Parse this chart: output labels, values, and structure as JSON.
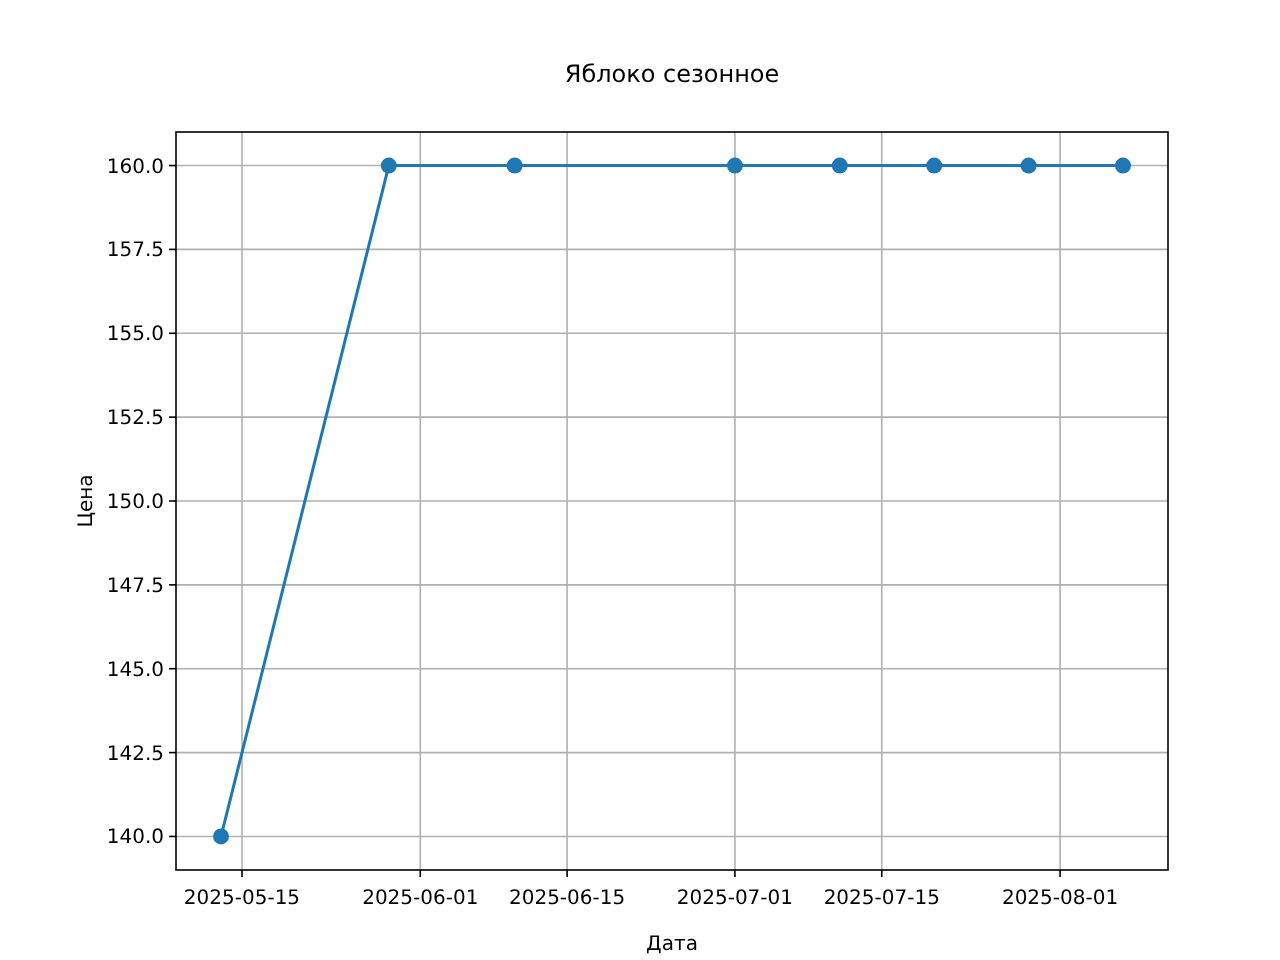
{
  "chart_data": {
    "type": "line",
    "title": "Яблоко сезонное",
    "xlabel": "Дата",
    "ylabel": "Цена",
    "x": [
      "2025-05-13",
      "2025-05-29",
      "2025-06-10",
      "2025-07-01",
      "2025-07-11",
      "2025-07-20",
      "2025-07-29",
      "2025-08-07"
    ],
    "series": [
      {
        "color": "#1f77b4",
        "values": [
          140,
          160,
          160,
          160,
          160,
          160,
          160,
          160
        ]
      }
    ],
    "xlim": [
      "2025-05-08T17:00",
      "2025-08-11T07:00"
    ],
    "xticks": [
      "2025-05-15",
      "2025-06-01",
      "2025-06-15",
      "2025-07-01",
      "2025-07-15",
      "2025-08-01"
    ],
    "ylim": [
      139,
      161
    ],
    "yticks": [
      {
        "value": 140,
        "label": "140.0"
      },
      {
        "value": 142.5,
        "label": "142.5"
      },
      {
        "value": 145,
        "label": "145.0"
      },
      {
        "value": 147.5,
        "label": "147.5"
      },
      {
        "value": 150,
        "label": "150.0"
      },
      {
        "value": 152.5,
        "label": "152.5"
      },
      {
        "value": 155,
        "label": "155.0"
      },
      {
        "value": 157.5,
        "label": "157.5"
      },
      {
        "value": 160,
        "label": "160.0"
      }
    ],
    "grid": true,
    "marker": "circle",
    "line_style": "solid"
  }
}
